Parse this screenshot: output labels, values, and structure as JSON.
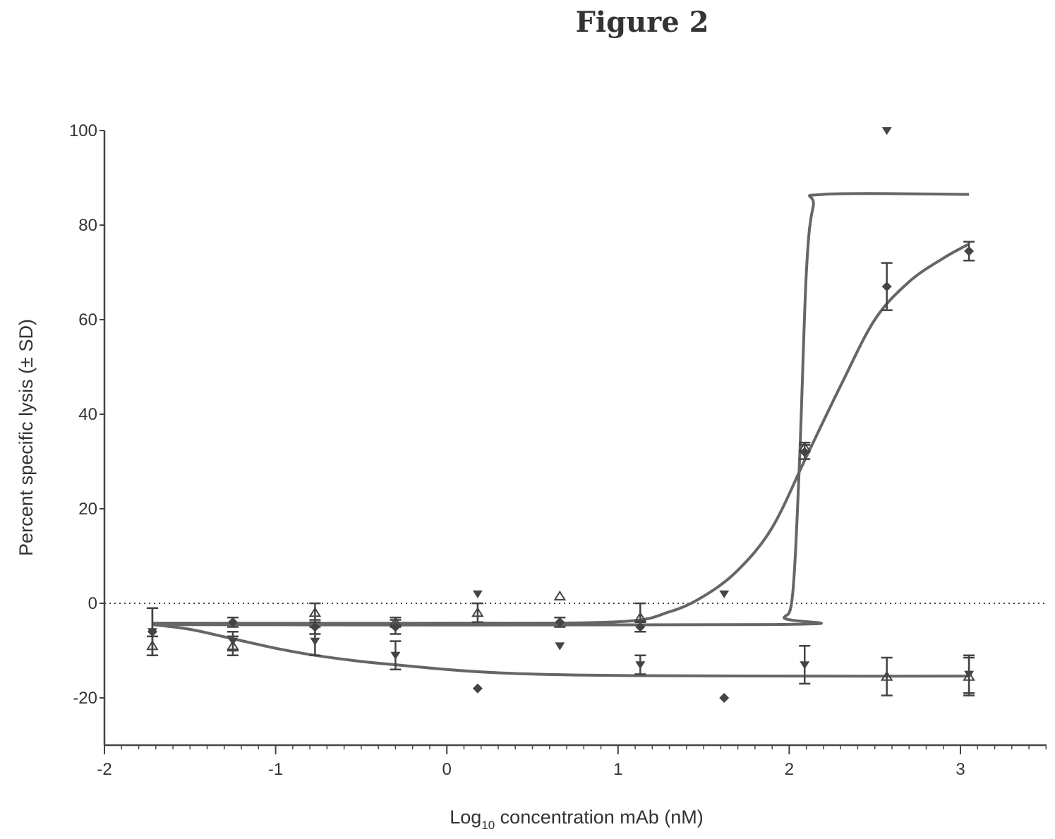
{
  "figure_title": "Figure 2",
  "colors": {
    "ink": "#444444",
    "curve": "#666666"
  },
  "chart_data": {
    "type": "scatter",
    "title": "",
    "xlabel_main": "Log",
    "xlabel_sub": "10",
    "xlabel_rest": " concentration mAb (nM)",
    "ylabel": "Percent specific lysis (± SD)",
    "xlim": [
      -2,
      3.5
    ],
    "ylim": [
      -30,
      100
    ],
    "x_ticks": [
      -2,
      -1,
      0,
      1,
      2,
      3
    ],
    "x_tick_labels": [
      "-2",
      "-1",
      "0",
      "1",
      "2",
      "3"
    ],
    "x_minor_step": 0.1,
    "y_ticks": [
      -20,
      0,
      20,
      40,
      60,
      80,
      100
    ],
    "y_tick_labels": [
      "-20",
      "0",
      "20",
      "40",
      "60",
      "80",
      "100"
    ],
    "reference_line": {
      "y": 0,
      "style": "dotted"
    },
    "series": [
      {
        "marker": "diamond",
        "points": [
          {
            "x": -1.72,
            "y": -6,
            "sd": 5
          },
          {
            "x": -1.25,
            "y": -4,
            "sd": 1
          },
          {
            "x": -0.77,
            "y": -5,
            "sd": 1.5
          },
          {
            "x": -0.3,
            "y": -5,
            "sd": 1.5
          },
          {
            "x": 0.18,
            "y": -18,
            "sd": 0
          },
          {
            "x": 0.66,
            "y": -4,
            "sd": 1
          },
          {
            "x": 1.13,
            "y": -5,
            "sd": 1
          },
          {
            "x": 1.62,
            "y": -20,
            "sd": 0
          },
          {
            "x": 2.09,
            "y": 32,
            "sd": 1.5
          },
          {
            "x": 2.57,
            "y": 67,
            "sd": 5
          },
          {
            "x": 3.05,
            "y": 74.5,
            "sd": 2
          }
        ],
        "fit": [
          [
            -1.72,
            -4.2
          ],
          [
            0,
            -4.2
          ],
          [
            1.0,
            -3.9
          ],
          [
            1.3,
            -1.8
          ],
          [
            1.5,
            1.5
          ],
          [
            1.7,
            7
          ],
          [
            1.9,
            16
          ],
          [
            2.1,
            31
          ],
          [
            2.3,
            46
          ],
          [
            2.5,
            60
          ],
          [
            2.7,
            68
          ],
          [
            2.9,
            73
          ],
          [
            3.05,
            76
          ]
        ]
      },
      {
        "marker": "triangle-down",
        "points": [
          {
            "x": -1.72,
            "y": -6,
            "sd": 5
          },
          {
            "x": -1.25,
            "y": -8,
            "sd": 2
          },
          {
            "x": -0.77,
            "y": -8,
            "sd": 3
          },
          {
            "x": -0.3,
            "y": -11,
            "sd": 3
          },
          {
            "x": 0.18,
            "y": 2,
            "sd": 0
          },
          {
            "x": 0.66,
            "y": -9,
            "sd": 0
          },
          {
            "x": 1.13,
            "y": -13,
            "sd": 2
          },
          {
            "x": 1.62,
            "y": 2,
            "sd": 0
          },
          {
            "x": 2.09,
            "y": -13,
            "sd": 4
          },
          {
            "x": 2.57,
            "y": 100,
            "sd": 0
          },
          {
            "x": 3.05,
            "y": -15,
            "sd": 4
          }
        ],
        "fit": [
          [
            -1.72,
            -4.5
          ],
          [
            -1.5,
            -5.5
          ],
          [
            -1.25,
            -7.5
          ],
          [
            -1.0,
            -9.5
          ],
          [
            -0.77,
            -11
          ],
          [
            -0.5,
            -12.3
          ],
          [
            -0.3,
            -13
          ],
          [
            0,
            -14
          ],
          [
            0.3,
            -14.7
          ],
          [
            0.66,
            -15.1
          ],
          [
            1.13,
            -15.3
          ],
          [
            2.09,
            -15.4
          ],
          [
            3.05,
            -15.4
          ]
        ]
      },
      {
        "marker": "triangle-up",
        "points": [
          {
            "x": -1.72,
            "y": -9,
            "sd": 2
          },
          {
            "x": -1.25,
            "y": -9,
            "sd": 2
          },
          {
            "x": -0.77,
            "y": -2,
            "sd": 2
          },
          {
            "x": -0.3,
            "y": -4,
            "sd": 1
          },
          {
            "x": 0.18,
            "y": -2,
            "sd": 2
          },
          {
            "x": 0.66,
            "y": 1.5,
            "sd": 0
          },
          {
            "x": 1.13,
            "y": -3,
            "sd": 3
          },
          {
            "x": 2.09,
            "y": 33,
            "sd": 1
          },
          {
            "x": 2.57,
            "y": -15.5,
            "sd": 4
          },
          {
            "x": 3.05,
            "y": -15.5,
            "sd": 4
          }
        ],
        "fit": [
          [
            -1.72,
            -4.5
          ],
          [
            1.9,
            -4.5
          ],
          [
            1.97,
            -3
          ],
          [
            2.02,
            2
          ],
          [
            2.06,
            30
          ],
          [
            2.1,
            70
          ],
          [
            2.14,
            84
          ],
          [
            2.2,
            86.5
          ],
          [
            3.05,
            86.5
          ]
        ]
      }
    ]
  }
}
